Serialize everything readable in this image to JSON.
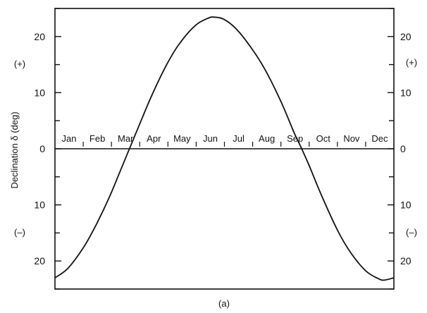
{
  "chart_data": {
    "type": "line",
    "title": "",
    "ylabel": "Declination δ (deg)",
    "caption": "(a)",
    "ylim": [
      -25,
      25
    ],
    "grid": false,
    "y_ticks_major": [
      -20,
      -10,
      0,
      10,
      20
    ],
    "y_tick_labels_left": [
      "20",
      "10",
      "0",
      "10",
      "20"
    ],
    "y_tick_labels_right": [
      "20",
      "10",
      "0",
      "10",
      "20"
    ],
    "sign_labels": {
      "positive": "(+)",
      "negative": "(–)"
    },
    "months": [
      "Jan",
      "Feb",
      "Mar",
      "Apr",
      "May",
      "Jun",
      "Jul",
      "Aug",
      "Sep",
      "Oct",
      "Nov",
      "Dec"
    ],
    "series": [
      {
        "x": [
          1,
          15,
          32,
          46,
          60,
          74,
          81,
          91,
          105,
          121,
          135,
          152,
          166,
          172,
          182,
          196,
          213,
          227,
          244,
          258,
          266,
          274,
          288,
          305,
          319,
          335,
          349,
          355,
          365
        ],
        "values": [
          -23.0,
          -21.3,
          -17.5,
          -13.3,
          -8.4,
          -2.8,
          0.0,
          4.0,
          9.5,
          15.0,
          18.8,
          22.0,
          23.3,
          23.45,
          23.1,
          21.3,
          17.7,
          14.0,
          8.3,
          2.8,
          0.0,
          -3.0,
          -8.6,
          -14.7,
          -18.6,
          -21.8,
          -23.2,
          -23.4,
          -23.0
        ]
      }
    ]
  }
}
